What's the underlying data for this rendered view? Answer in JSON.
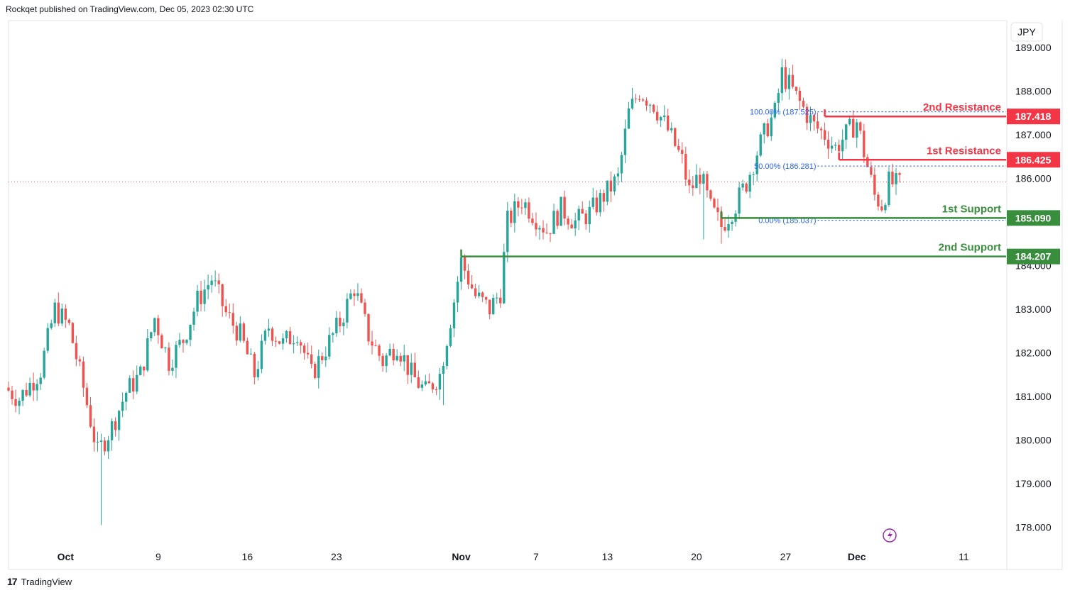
{
  "header": {
    "text": "Rockqet published on TradingView.com, Dec 05, 2023 02:30 UTC"
  },
  "footer": {
    "logo": "17",
    "brand": "TradingView"
  },
  "currency_button": "JPY",
  "colors": {
    "up": "#26a69a",
    "down": "#ef5350",
    "resistance": "#f23645",
    "support": "#388e3c",
    "fib": "#2962ff",
    "current_line": "#ef5350"
  },
  "icons": {
    "flash": "lightning-icon"
  },
  "chart_data": {
    "type": "candlestick",
    "symbol_currency": "JPY",
    "ylim": [
      177.6,
      189.6
    ],
    "y_ticks": [
      "189.000",
      "188.000",
      "187.000",
      "186.000",
      "184.000",
      "183.000",
      "182.000",
      "181.000",
      "180.000",
      "179.000",
      "178.000"
    ],
    "y_tick_values": [
      189,
      188,
      187,
      186,
      184,
      183,
      182,
      181,
      180,
      179,
      178
    ],
    "x_ticks": [
      {
        "label": "Oct",
        "bar": 16,
        "bold": true
      },
      {
        "label": "9",
        "bar": 42,
        "bold": false
      },
      {
        "label": "16",
        "bar": 67,
        "bold": false
      },
      {
        "label": "23",
        "bar": 92,
        "bold": false
      },
      {
        "label": "Nov",
        "bar": 127,
        "bold": true
      },
      {
        "label": "7",
        "bar": 148,
        "bold": false
      },
      {
        "label": "13",
        "bar": 168,
        "bold": false
      },
      {
        "label": "20",
        "bar": 193,
        "bold": false
      },
      {
        "label": "27",
        "bar": 218,
        "bold": false
      },
      {
        "label": "Dec",
        "bar": 238,
        "bold": true
      },
      {
        "label": "11",
        "bar": 268,
        "bold": false
      }
    ],
    "current_price": 185.92,
    "levels": [
      {
        "name": "2nd Resistance",
        "value": 187.418,
        "label": "187.418",
        "kind": "resistance",
        "start_bar": 229
      },
      {
        "name": "1st Resistance",
        "value": 186.425,
        "label": "186.425",
        "kind": "resistance",
        "start_bar": 233
      },
      {
        "name": "1st Support",
        "value": 185.09,
        "label": "185.090",
        "kind": "support",
        "start_bar": 200
      },
      {
        "name": "2nd Support",
        "value": 184.207,
        "label": "184.207",
        "kind": "support",
        "start_bar": 127
      }
    ],
    "fib": [
      {
        "label": "100.00% (187.525)",
        "value": 187.525
      },
      {
        "label": "50.00% (186.281)",
        "value": 186.281
      },
      {
        "label": "0.00% (185.037)",
        "value": 185.037
      }
    ],
    "fib_start_bar": 227,
    "fib_end_bar": 282,
    "key_points": [
      [
        0,
        181.2
      ],
      [
        4,
        180.95
      ],
      [
        10,
        181.6
      ],
      [
        14,
        183.0
      ],
      [
        18,
        182.6
      ],
      [
        22,
        181.2
      ],
      [
        26,
        179.7
      ],
      [
        30,
        180.3
      ],
      [
        34,
        181.1
      ],
      [
        38,
        181.5
      ],
      [
        42,
        182.8
      ],
      [
        46,
        181.8
      ],
      [
        50,
        182.3
      ],
      [
        54,
        183.2
      ],
      [
        58,
        183.7
      ],
      [
        62,
        182.9
      ],
      [
        66,
        182.4
      ],
      [
        70,
        181.5
      ],
      [
        74,
        182.6
      ],
      [
        78,
        182.2
      ],
      [
        82,
        182.5
      ],
      [
        86,
        181.5
      ],
      [
        90,
        182.1
      ],
      [
        94,
        182.7
      ],
      [
        98,
        183.5
      ],
      [
        102,
        182.4
      ],
      [
        106,
        181.8
      ],
      [
        110,
        182.2
      ],
      [
        114,
        181.5
      ],
      [
        118,
        181.1
      ],
      [
        122,
        181.5
      ],
      [
        126,
        183.2
      ],
      [
        128,
        184.1
      ],
      [
        132,
        183.3
      ],
      [
        136,
        183.0
      ],
      [
        139,
        183.4
      ],
      [
        141,
        185.0
      ],
      [
        145,
        185.5
      ],
      [
        148,
        185.2
      ],
      [
        152,
        184.8
      ],
      [
        156,
        185.3
      ],
      [
        160,
        185.0
      ],
      [
        164,
        185.2
      ],
      [
        168,
        185.6
      ],
      [
        172,
        186.0
      ],
      [
        175,
        187.5
      ],
      [
        178,
        188.0
      ],
      [
        182,
        187.7
      ],
      [
        186,
        187.1
      ],
      [
        190,
        186.4
      ],
      [
        192,
        185.7
      ],
      [
        195,
        186.1
      ],
      [
        198,
        185.3
      ],
      [
        201,
        184.9
      ],
      [
        205,
        185.4
      ],
      [
        208,
        185.9
      ],
      [
        211,
        186.6
      ],
      [
        214,
        187.2
      ],
      [
        216,
        187.5
      ],
      [
        218,
        188.4
      ],
      [
        221,
        188.0
      ],
      [
        224,
        187.6
      ],
      [
        227,
        187.2
      ],
      [
        230,
        187.0
      ],
      [
        233,
        186.7
      ],
      [
        236,
        187.0
      ],
      [
        239,
        187.3
      ],
      [
        241,
        186.6
      ],
      [
        244,
        185.6
      ],
      [
        246,
        185.4
      ],
      [
        248,
        185.9
      ],
      [
        250,
        185.85
      ]
    ],
    "wick_spikes": [
      [
        26,
        178.05
      ],
      [
        122,
        180.8
      ],
      [
        200,
        184.5
      ],
      [
        195,
        184.6
      ]
    ]
  }
}
